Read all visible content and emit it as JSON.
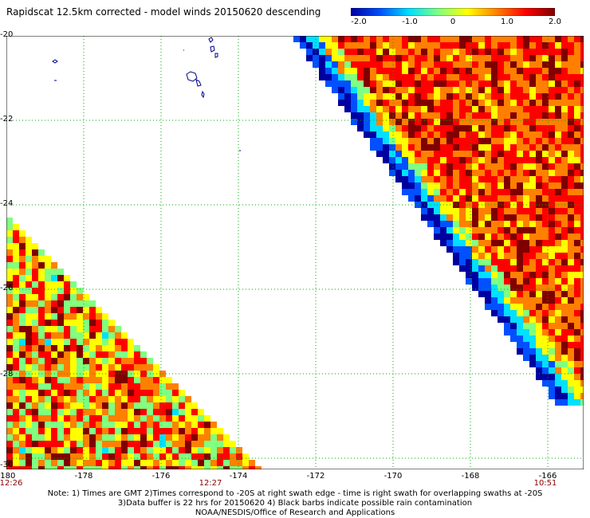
{
  "title": "Rapidscat 12.5km corrected - model winds 20150620 descending",
  "colorbar": {
    "labels": [
      "-2.0",
      "-1.0",
      "0",
      "1.0",
      "2.0"
    ],
    "stops": [
      "#0000a0",
      "#0050ff",
      "#00e0ff",
      "#80ff80",
      "#ffff00",
      "#ff8000",
      "#ff0000",
      "#800000"
    ]
  },
  "lat_labels": [
    "-20",
    "-22",
    "-24",
    "-26",
    "-28",
    "-30"
  ],
  "lon_labels": [
    "-180",
    "-178",
    "-176",
    "-174",
    "-172",
    "-170",
    "-168",
    "-166"
  ],
  "time_labels": [
    "12:26",
    "12:27",
    "10:51"
  ],
  "notes": [
    "Note: 1) Times are GMT 2)Times correspond to -20S at right swath edge - time is right swath for overlapping swaths at -20S",
    "3)Data buffer is 22 hrs for 20150620 4) Black barbs indicate possible rain contamination",
    "NOAA/NESDIS/Office of Research and Applications"
  ]
}
